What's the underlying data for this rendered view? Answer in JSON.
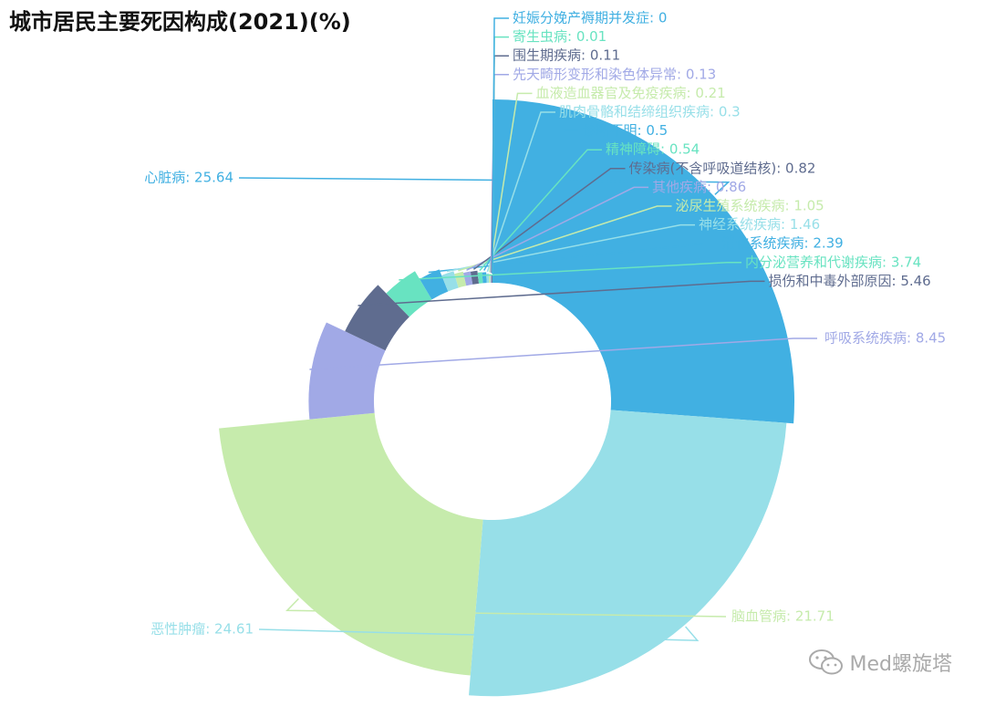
{
  "chart_data": {
    "type": "pie",
    "variant": "rose-donut",
    "title": "城市居民主要死因构成(2021)(%)",
    "slices": [
      {
        "label": "心脏病",
        "value": 25.64,
        "color": "#41b0e2"
      },
      {
        "label": "恶性肿瘤",
        "value": 24.61,
        "color": "#97dfe8"
      },
      {
        "label": "脑血管病",
        "value": 21.71,
        "color": "#c6ebac"
      },
      {
        "label": "呼吸系统疾病",
        "value": 8.45,
        "color": "#a1a9e6"
      },
      {
        "label": "损伤和中毒外部原因",
        "value": 5.46,
        "color": "#5f6c8f"
      },
      {
        "label": "内分泌营养和代谢疾病",
        "value": 3.74,
        "color": "#68e3c1"
      },
      {
        "label": "消化系统疾病",
        "value": 2.39,
        "color": "#41b0e2"
      },
      {
        "label": "神经系统疾病",
        "value": 1.46,
        "color": "#97dfe8"
      },
      {
        "label": "泌尿生殖系统疾病",
        "value": 1.05,
        "color": "#c6ebac"
      },
      {
        "label": "其他疾病",
        "value": 0.86,
        "color": "#a1a9e6"
      },
      {
        "label": "传染病(不含呼吸道结核)",
        "value": 0.82,
        "color": "#5f6c8f"
      },
      {
        "label": "精神障碍",
        "value": 0.54,
        "color": "#68e3c1"
      },
      {
        "label": "诊断不明",
        "value": 0.5,
        "color": "#41b0e2"
      },
      {
        "label": "肌肉骨骼和结缔组织疾病",
        "value": 0.3,
        "color": "#97dfe8"
      },
      {
        "label": "血液造血器官及免疫疾病",
        "value": 0.21,
        "color": "#c6ebac"
      },
      {
        "label": "先天畸形变形和染色体异常",
        "value": 0.13,
        "color": "#a1a9e6"
      },
      {
        "label": "围生期疾病",
        "value": 0.11,
        "color": "#5f6c8f"
      },
      {
        "label": "寄生虫病",
        "value": 0.01,
        "color": "#68e3c1"
      },
      {
        "label": "妊娠分娩产褥期并发症",
        "value": 0,
        "color": "#41b0e2"
      }
    ]
  },
  "watermark": {
    "text": "Med螺旋塔",
    "icon": "wechat-icon"
  }
}
